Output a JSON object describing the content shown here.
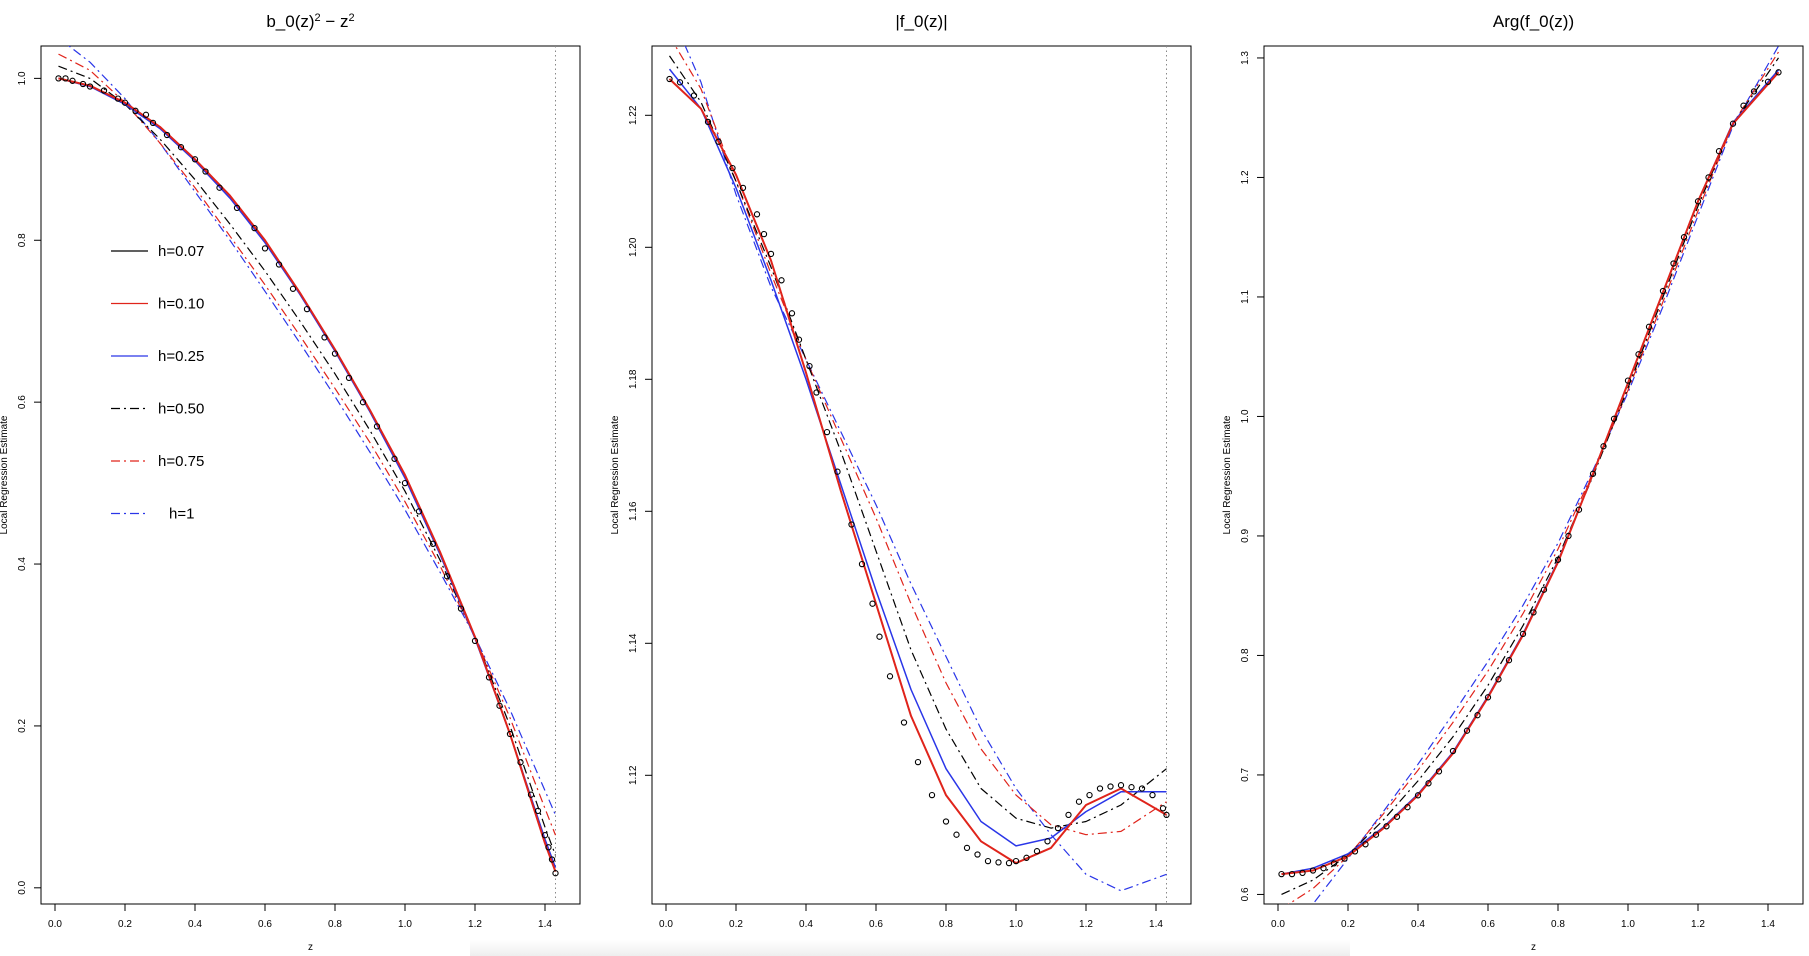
{
  "colors": {
    "h007": "#000000",
    "h010": "#e0241b",
    "h025": "#2a36e8",
    "h050": "#000000",
    "h075": "#e0241b",
    "h1": "#2a36e8",
    "frame": "#000000",
    "vline": "#888888"
  },
  "legend": [
    {
      "key": "h007",
      "label": "h=0.07",
      "style": "solid"
    },
    {
      "key": "h010",
      "label": "h=0.10",
      "style": "solid"
    },
    {
      "key": "h025",
      "label": "h=0.25",
      "style": "solid"
    },
    {
      "key": "h050",
      "label": "h=0.50",
      "style": "dashdot"
    },
    {
      "key": "h075",
      "label": "h=0.75",
      "style": "dashdot"
    },
    {
      "key": "h1",
      "label": "h=1",
      "style": "dashdot"
    }
  ],
  "chart_data": [
    {
      "type": "line",
      "title": "b_0(z)² − z²",
      "xlabel": "z",
      "ylabel": "Local Regression Estimate",
      "xlim": [
        -0.04,
        1.5
      ],
      "ylim": [
        -0.02,
        1.04
      ],
      "xticks": [
        "0.0",
        "0.2",
        "0.4",
        "0.6",
        "0.8",
        "1.0",
        "1.2",
        "1.4"
      ],
      "yticks": [
        "0.0",
        "0.2",
        "0.4",
        "0.6",
        "0.8",
        "1.0"
      ],
      "vline": 1.43,
      "legend_placement": "left-middle",
      "points": {
        "x": [
          0.01,
          0.03,
          0.05,
          0.08,
          0.1,
          0.14,
          0.18,
          0.2,
          0.23,
          0.26,
          0.28,
          0.32,
          0.36,
          0.4,
          0.43,
          0.47,
          0.52,
          0.57,
          0.6,
          0.64,
          0.68,
          0.72,
          0.77,
          0.8,
          0.84,
          0.88,
          0.92,
          0.97,
          1.0,
          1.04,
          1.08,
          1.12,
          1.16,
          1.2,
          1.24,
          1.27,
          1.3,
          1.33,
          1.36,
          1.38,
          1.4,
          1.41,
          1.42,
          1.43
        ],
        "y": [
          1.0,
          1.0,
          0.997,
          0.993,
          0.99,
          0.985,
          0.975,
          0.97,
          0.96,
          0.955,
          0.945,
          0.93,
          0.915,
          0.9,
          0.885,
          0.865,
          0.84,
          0.815,
          0.79,
          0.77,
          0.74,
          0.715,
          0.68,
          0.66,
          0.63,
          0.6,
          0.57,
          0.53,
          0.5,
          0.465,
          0.425,
          0.385,
          0.345,
          0.305,
          0.26,
          0.225,
          0.19,
          0.155,
          0.115,
          0.095,
          0.065,
          0.05,
          0.035,
          0.018
        ]
      },
      "series": [
        {
          "key": "h007",
          "x": [
            0.01,
            0.1,
            0.2,
            0.3,
            0.4,
            0.5,
            0.6,
            0.7,
            0.8,
            0.9,
            1.0,
            1.1,
            1.2,
            1.3,
            1.4,
            1.43
          ],
          "y": [
            1.0,
            0.991,
            0.97,
            0.94,
            0.9,
            0.855,
            0.8,
            0.735,
            0.665,
            0.59,
            0.51,
            0.415,
            0.31,
            0.19,
            0.055,
            0.02
          ]
        },
        {
          "key": "h010",
          "x": [
            0.01,
            0.1,
            0.2,
            0.3,
            0.4,
            0.5,
            0.6,
            0.7,
            0.8,
            0.9,
            1.0,
            1.1,
            1.2,
            1.3,
            1.4,
            1.43
          ],
          "y": [
            1.0,
            0.991,
            0.97,
            0.94,
            0.9,
            0.855,
            0.8,
            0.735,
            0.665,
            0.59,
            0.51,
            0.415,
            0.31,
            0.19,
            0.055,
            0.02
          ]
        },
        {
          "key": "h025",
          "x": [
            0.01,
            0.1,
            0.2,
            0.3,
            0.4,
            0.5,
            0.6,
            0.7,
            0.8,
            0.9,
            1.0,
            1.1,
            1.2,
            1.3,
            1.4,
            1.43
          ],
          "y": [
            1.0,
            0.99,
            0.968,
            0.938,
            0.898,
            0.852,
            0.797,
            0.733,
            0.663,
            0.588,
            0.506,
            0.412,
            0.308,
            0.19,
            0.06,
            0.025
          ]
        },
        {
          "key": "h050",
          "x": [
            0.01,
            0.1,
            0.2,
            0.3,
            0.4,
            0.5,
            0.6,
            0.7,
            0.8,
            0.9,
            1.0,
            1.1,
            1.2,
            1.3,
            1.4,
            1.43
          ],
          "y": [
            1.015,
            1.0,
            0.968,
            0.925,
            0.875,
            0.82,
            0.762,
            0.7,
            0.635,
            0.565,
            0.49,
            0.405,
            0.31,
            0.2,
            0.075,
            0.04
          ]
        },
        {
          "key": "h075",
          "x": [
            0.01,
            0.1,
            0.2,
            0.3,
            0.4,
            0.5,
            0.6,
            0.7,
            0.8,
            0.9,
            1.0,
            1.1,
            1.2,
            1.3,
            1.4,
            1.43
          ],
          "y": [
            1.03,
            1.01,
            0.97,
            0.92,
            0.865,
            0.805,
            0.745,
            0.682,
            0.617,
            0.55,
            0.477,
            0.398,
            0.31,
            0.21,
            0.098,
            0.065
          ]
        },
        {
          "key": "h1",
          "x": [
            0.01,
            0.1,
            0.2,
            0.3,
            0.4,
            0.5,
            0.6,
            0.7,
            0.8,
            0.9,
            1.0,
            1.1,
            1.2,
            1.3,
            1.4,
            1.43
          ],
          "y": [
            1.05,
            1.02,
            0.975,
            0.92,
            0.86,
            0.8,
            0.737,
            0.673,
            0.607,
            0.538,
            0.467,
            0.39,
            0.31,
            0.22,
            0.12,
            0.09
          ]
        }
      ]
    },
    {
      "type": "line",
      "title": "|f_0(z)|",
      "xlabel": "z",
      "ylabel": "Local Regression Estimate",
      "xlim": [
        -0.04,
        1.5
      ],
      "ylim": [
        1.1005,
        1.2305
      ],
      "xticks": [
        "0.0",
        "0.2",
        "0.4",
        "0.6",
        "0.8",
        "1.0",
        "1.2",
        "1.4"
      ],
      "yticks": [
        "1.12",
        "1.14",
        "1.16",
        "1.18",
        "1.20",
        "1.22"
      ],
      "vline": 1.43,
      "points": {
        "x": [
          0.01,
          0.04,
          0.08,
          0.12,
          0.15,
          0.19,
          0.22,
          0.26,
          0.28,
          0.3,
          0.33,
          0.36,
          0.38,
          0.41,
          0.43,
          0.46,
          0.49,
          0.53,
          0.56,
          0.59,
          0.61,
          0.64,
          0.68,
          0.72,
          0.76,
          0.8,
          0.83,
          0.86,
          0.89,
          0.92,
          0.95,
          0.98,
          1.0,
          1.03,
          1.06,
          1.09,
          1.12,
          1.15,
          1.18,
          1.21,
          1.24,
          1.27,
          1.3,
          1.33,
          1.36,
          1.39,
          1.42,
          1.43
        ],
        "y": [
          1.2255,
          1.225,
          1.223,
          1.219,
          1.216,
          1.212,
          1.209,
          1.205,
          1.202,
          1.199,
          1.195,
          1.19,
          1.186,
          1.182,
          1.178,
          1.172,
          1.166,
          1.158,
          1.152,
          1.146,
          1.141,
          1.135,
          1.128,
          1.122,
          1.117,
          1.113,
          1.111,
          1.109,
          1.108,
          1.107,
          1.1068,
          1.1067,
          1.107,
          1.1075,
          1.1085,
          1.11,
          1.112,
          1.114,
          1.116,
          1.117,
          1.118,
          1.1183,
          1.1185,
          1.1182,
          1.118,
          1.117,
          1.115,
          1.114
        ]
      },
      "series": [
        {
          "key": "h007",
          "x": [
            0.01,
            0.1,
            0.2,
            0.3,
            0.4,
            0.5,
            0.6,
            0.7,
            0.8,
            0.9,
            1.0,
            1.1,
            1.2,
            1.3,
            1.43
          ],
          "y": [
            1.2255,
            1.221,
            1.211,
            1.198,
            1.181,
            1.163,
            1.146,
            1.129,
            1.117,
            1.11,
            1.1067,
            1.109,
            1.1155,
            1.118,
            1.114
          ]
        },
        {
          "key": "h010",
          "x": [
            0.01,
            0.1,
            0.2,
            0.3,
            0.4,
            0.5,
            0.6,
            0.7,
            0.8,
            0.9,
            1.0,
            1.1,
            1.2,
            1.3,
            1.43
          ],
          "y": [
            1.2255,
            1.221,
            1.211,
            1.198,
            1.181,
            1.163,
            1.146,
            1.129,
            1.117,
            1.11,
            1.1067,
            1.109,
            1.1155,
            1.118,
            1.114
          ]
        },
        {
          "key": "h025",
          "x": [
            0.01,
            0.1,
            0.2,
            0.3,
            0.4,
            0.5,
            0.6,
            0.7,
            0.8,
            0.9,
            1.0,
            1.1,
            1.2,
            1.3,
            1.43
          ],
          "y": [
            1.227,
            1.221,
            1.209,
            1.195,
            1.18,
            1.164,
            1.148,
            1.133,
            1.121,
            1.113,
            1.1093,
            1.1105,
            1.1145,
            1.1175,
            1.1175
          ]
        },
        {
          "key": "h050",
          "x": [
            0.01,
            0.1,
            0.2,
            0.3,
            0.4,
            0.5,
            0.6,
            0.7,
            0.8,
            0.9,
            1.0,
            1.1,
            1.2,
            1.3,
            1.43
          ],
          "y": [
            1.229,
            1.222,
            1.21,
            1.197,
            1.183,
            1.169,
            1.154,
            1.139,
            1.127,
            1.118,
            1.1135,
            1.112,
            1.113,
            1.1155,
            1.121
          ]
        },
        {
          "key": "h075",
          "x": [
            0.01,
            0.1,
            0.2,
            0.3,
            0.4,
            0.5,
            0.6,
            0.7,
            0.8,
            0.9,
            1.0,
            1.1,
            1.2,
            1.3,
            1.43
          ],
          "y": [
            1.232,
            1.224,
            1.21,
            1.196,
            1.183,
            1.171,
            1.159,
            1.146,
            1.134,
            1.124,
            1.117,
            1.1125,
            1.111,
            1.1115,
            1.116
          ]
        },
        {
          "key": "h1",
          "x": [
            0.01,
            0.1,
            0.2,
            0.3,
            0.4,
            0.5,
            0.6,
            0.7,
            0.8,
            0.9,
            1.0,
            1.1,
            1.2,
            1.3,
            1.43
          ],
          "y": [
            1.236,
            1.225,
            1.208,
            1.194,
            1.183,
            1.172,
            1.161,
            1.149,
            1.138,
            1.127,
            1.118,
            1.111,
            1.105,
            1.1025,
            1.105
          ]
        }
      ]
    },
    {
      "type": "line",
      "title": "Arg(f_0(z))",
      "xlabel": "z",
      "ylabel": "Local Regression Estimate",
      "xlim": [
        -0.04,
        1.5
      ],
      "ylim": [
        0.592,
        1.31
      ],
      "xticks": [
        "0.0",
        "0.2",
        "0.4",
        "0.6",
        "0.8",
        "1.0",
        "1.2",
        "1.4"
      ],
      "yticks": [
        "0.6",
        "0.7",
        "0.8",
        "0.9",
        "1.0",
        "1.1",
        "1.2",
        "1.3"
      ],
      "points": {
        "x": [
          0.01,
          0.04,
          0.07,
          0.1,
          0.13,
          0.16,
          0.19,
          0.22,
          0.25,
          0.28,
          0.31,
          0.34,
          0.37,
          0.4,
          0.43,
          0.46,
          0.5,
          0.54,
          0.57,
          0.6,
          0.63,
          0.66,
          0.7,
          0.73,
          0.76,
          0.8,
          0.83,
          0.86,
          0.9,
          0.93,
          0.96,
          1.0,
          1.03,
          1.06,
          1.1,
          1.13,
          1.16,
          1.2,
          1.23,
          1.26,
          1.3,
          1.33,
          1.36,
          1.4,
          1.43
        ],
        "y": [
          0.617,
          0.617,
          0.618,
          0.62,
          0.622,
          0.626,
          0.63,
          0.636,
          0.642,
          0.65,
          0.657,
          0.665,
          0.673,
          0.683,
          0.693,
          0.703,
          0.72,
          0.737,
          0.75,
          0.765,
          0.78,
          0.796,
          0.818,
          0.836,
          0.855,
          0.88,
          0.9,
          0.922,
          0.952,
          0.975,
          0.998,
          1.03,
          1.052,
          1.075,
          1.105,
          1.128,
          1.15,
          1.18,
          1.2,
          1.222,
          1.245,
          1.26,
          1.272,
          1.28,
          1.288
        ]
      },
      "series": [
        {
          "key": "h007",
          "x": [
            0.01,
            0.1,
            0.2,
            0.3,
            0.4,
            0.5,
            0.6,
            0.7,
            0.8,
            0.9,
            1.0,
            1.1,
            1.2,
            1.3,
            1.43
          ],
          "y": [
            0.617,
            0.62,
            0.632,
            0.655,
            0.683,
            0.718,
            0.765,
            0.817,
            0.878,
            0.952,
            1.028,
            1.104,
            1.18,
            1.245,
            1.288
          ]
        },
        {
          "key": "h010",
          "x": [
            0.01,
            0.1,
            0.2,
            0.3,
            0.4,
            0.5,
            0.6,
            0.7,
            0.8,
            0.9,
            1.0,
            1.1,
            1.2,
            1.3,
            1.43
          ],
          "y": [
            0.617,
            0.62,
            0.632,
            0.655,
            0.683,
            0.718,
            0.765,
            0.817,
            0.878,
            0.952,
            1.028,
            1.104,
            1.18,
            1.245,
            1.288
          ]
        },
        {
          "key": "h025",
          "x": [
            0.01,
            0.1,
            0.2,
            0.3,
            0.4,
            0.5,
            0.6,
            0.7,
            0.8,
            0.9,
            1.0,
            1.1,
            1.2,
            1.3,
            1.43
          ],
          "y": [
            0.617,
            0.622,
            0.634,
            0.656,
            0.684,
            0.719,
            0.766,
            0.818,
            0.879,
            0.952,
            1.028,
            1.104,
            1.18,
            1.246,
            1.29
          ]
        },
        {
          "key": "h050",
          "x": [
            0.01,
            0.1,
            0.2,
            0.3,
            0.4,
            0.5,
            0.6,
            0.7,
            0.8,
            0.9,
            1.0,
            1.1,
            1.2,
            1.3,
            1.43
          ],
          "y": [
            0.6,
            0.612,
            0.633,
            0.662,
            0.695,
            0.732,
            0.775,
            0.825,
            0.882,
            0.95,
            1.024,
            1.1,
            1.176,
            1.245,
            1.3
          ]
        },
        {
          "key": "h075",
          "x": [
            0.01,
            0.1,
            0.2,
            0.3,
            0.4,
            0.5,
            0.6,
            0.7,
            0.8,
            0.9,
            1.0,
            1.1,
            1.2,
            1.3,
            1.43
          ],
          "y": [
            0.588,
            0.605,
            0.632,
            0.667,
            0.704,
            0.744,
            0.787,
            0.835,
            0.889,
            0.953,
            1.022,
            1.096,
            1.172,
            1.245,
            1.305
          ]
        },
        {
          "key": "h1",
          "x": [
            0.01,
            0.1,
            0.2,
            0.3,
            0.4,
            0.5,
            0.6,
            0.7,
            0.8,
            0.9,
            1.0,
            1.1,
            1.2,
            1.3,
            1.43
          ],
          "y": [
            0.555,
            0.592,
            0.63,
            0.669,
            0.709,
            0.751,
            0.795,
            0.842,
            0.894,
            0.955,
            1.02,
            1.092,
            1.168,
            1.243,
            1.31
          ]
        }
      ]
    }
  ]
}
